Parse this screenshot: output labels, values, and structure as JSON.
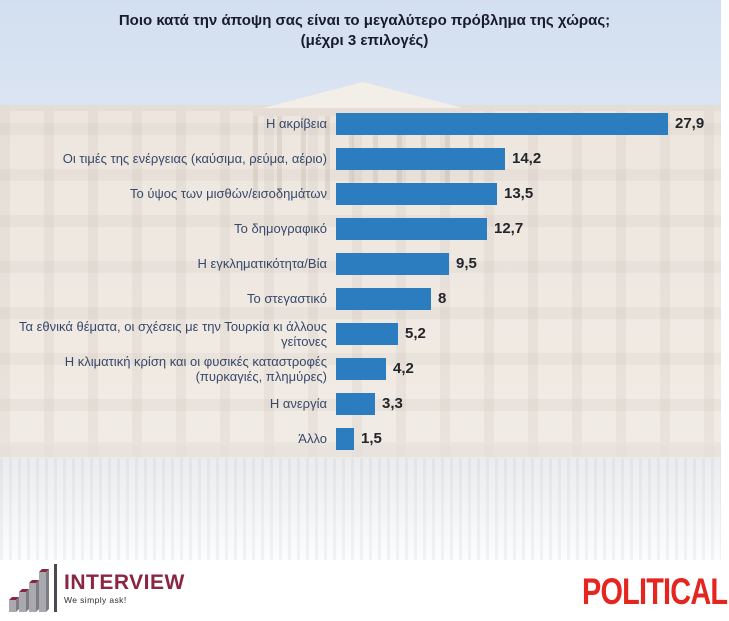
{
  "title": {
    "line1": "Ποιο κατά την άποψη σας είναι το μεγαλύτερο πρόβλημα της χώρας;",
    "line2": "(μέχρι 3 επιλογές)"
  },
  "chart_data": {
    "type": "bar",
    "orientation": "horizontal",
    "title": "Ποιο κατά την άποψη σας είναι το μεγαλύτερο πρόβλημα της χώρας; (μέχρι 3 επιλογές)",
    "categories": [
      "Η ακρίβεια",
      "Οι τιμές της ενέργειας (καύσιμα, ρεύμα, αέριο)",
      "Το ύψος των μισθών/εισοδημάτων",
      "Το δημογραφικό",
      "Η εγκληματικότητα/Βία",
      "Το στεγαστικό",
      "Τα εθνικά θέματα, οι σχέσεις με την Τουρκία κι άλλους γείτονες",
      "Η κλιματική κρίση και οι φυσικές καταστροφές (πυρκαγιές, πλημύρες)",
      "Η ανεργία",
      "Άλλο"
    ],
    "values": [
      27.9,
      14.2,
      13.5,
      12.7,
      9.5,
      8,
      5.2,
      4.2,
      3.3,
      1.5
    ],
    "value_labels": [
      "27,9",
      "14,2",
      "13,5",
      "12,7",
      "9,5",
      "8",
      "5,2",
      "4,2",
      "3,3",
      "1,5"
    ],
    "xlim": [
      0,
      29
    ],
    "bar_color": "#2c7cc0",
    "grid": false,
    "legend": false
  },
  "footer": {
    "interview": {
      "name": "INTERVIEW",
      "tagline": "We simply ask!",
      "brand_color": "#8a2543"
    },
    "political": {
      "name": "POLITICAL",
      "color": "#e52620"
    }
  }
}
